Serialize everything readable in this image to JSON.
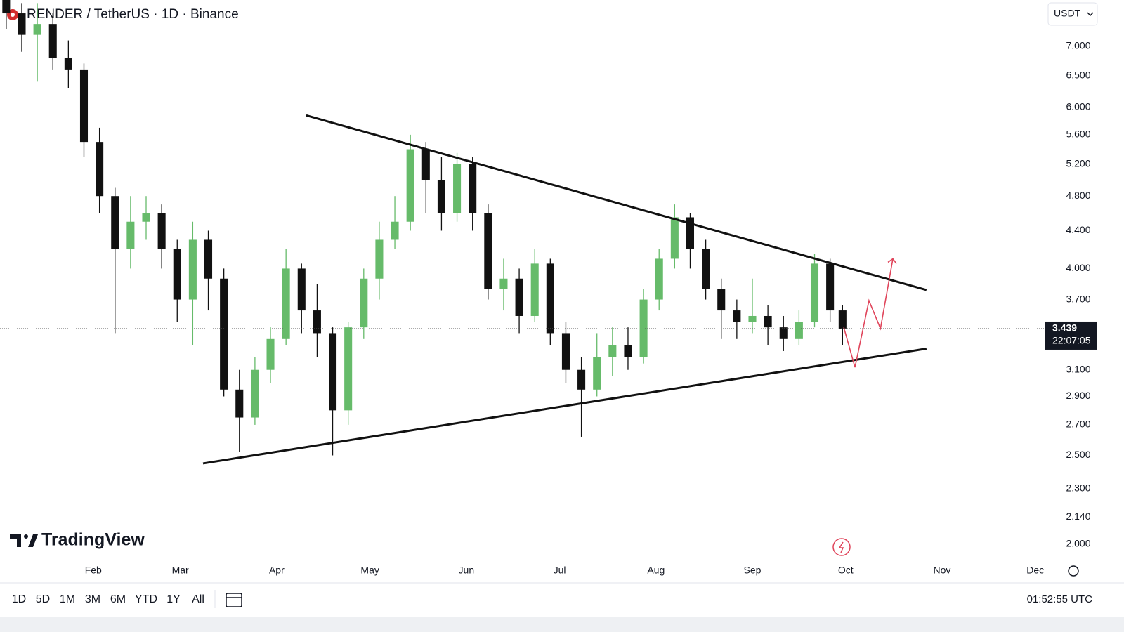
{
  "header": {
    "symbol": "RENDER / TetherUS · 1D · Binance",
    "currency": "USDT"
  },
  "brand": "TradingView",
  "toolbar": {
    "ranges": [
      "1D",
      "5D",
      "1M",
      "3M",
      "6M",
      "YTD",
      "1Y",
      "All"
    ],
    "clock": "01:52:55 UTC"
  },
  "chart_data": {
    "type": "candlestick",
    "log_scale": true,
    "up_color": "#66bb6a",
    "down_color": "#111111",
    "x": [
      3,
      8,
      13,
      18,
      23,
      28,
      33,
      38,
      43,
      48,
      53,
      58,
      63,
      68,
      73,
      78,
      83,
      88,
      93,
      98,
      103,
      108,
      113,
      118,
      123,
      128,
      133,
      138,
      143,
      148,
      153,
      158,
      163,
      168,
      173,
      178,
      183,
      188,
      193,
      198,
      203,
      208,
      213,
      218,
      223,
      228,
      233,
      238,
      243,
      248,
      253,
      258,
      263,
      268,
      272
    ],
    "open": [
      7.9,
      7.6,
      7.2,
      7.4,
      6.8,
      6.6,
      5.5,
      4.8,
      4.2,
      4.5,
      4.6,
      4.2,
      3.7,
      4.3,
      3.9,
      2.95,
      2.75,
      3.1,
      3.35,
      4.0,
      3.6,
      3.4,
      2.8,
      3.45,
      3.9,
      4.3,
      4.5,
      5.4,
      5.0,
      4.6,
      5.2,
      4.6,
      3.8,
      3.9,
      3.55,
      4.05,
      3.4,
      3.1,
      2.95,
      3.2,
      3.3,
      3.2,
      3.7,
      4.1,
      4.55,
      4.2,
      3.8,
      3.6,
      3.5,
      3.55,
      3.45,
      3.35,
      3.5,
      4.05,
      3.6
    ],
    "high": [
      8.1,
      7.8,
      7.8,
      7.6,
      7.1,
      6.7,
      5.7,
      4.9,
      4.8,
      4.8,
      4.7,
      4.3,
      4.5,
      4.4,
      4.0,
      3.1,
      3.2,
      3.45,
      4.2,
      4.05,
      3.85,
      3.45,
      3.5,
      4.0,
      4.5,
      4.8,
      5.6,
      5.5,
      5.3,
      5.35,
      5.3,
      4.7,
      4.1,
      4.0,
      4.2,
      4.1,
      3.5,
      3.2,
      3.4,
      3.45,
      3.45,
      3.8,
      4.2,
      4.7,
      4.6,
      4.3,
      3.9,
      3.7,
      3.9,
      3.65,
      3.55,
      3.6,
      4.15,
      4.1,
      3.65
    ],
    "low": [
      7.3,
      6.9,
      6.4,
      6.6,
      6.3,
      5.3,
      4.6,
      3.4,
      4.0,
      4.3,
      4.0,
      3.5,
      3.3,
      3.6,
      2.9,
      2.52,
      2.7,
      3.0,
      3.3,
      3.4,
      3.2,
      2.5,
      2.7,
      3.35,
      3.7,
      4.2,
      4.4,
      4.6,
      4.4,
      4.5,
      4.4,
      3.7,
      3.6,
      3.4,
      3.5,
      3.3,
      3.0,
      2.62,
      2.9,
      3.05,
      3.1,
      3.15,
      3.6,
      4.0,
      4.0,
      3.7,
      3.35,
      3.35,
      3.4,
      3.3,
      3.25,
      3.3,
      3.45,
      3.5,
      3.3
    ],
    "close": [
      7.6,
      7.2,
      7.4,
      6.8,
      6.6,
      5.5,
      4.8,
      4.2,
      4.5,
      4.6,
      4.2,
      3.7,
      4.3,
      3.9,
      2.95,
      2.75,
      3.1,
      3.35,
      4.0,
      3.6,
      3.4,
      2.8,
      3.45,
      3.9,
      4.3,
      4.5,
      5.4,
      5.0,
      4.6,
      5.2,
      4.6,
      3.8,
      3.9,
      3.55,
      4.05,
      3.4,
      3.1,
      2.95,
      3.2,
      3.3,
      3.2,
      3.7,
      4.1,
      4.55,
      4.2,
      3.8,
      3.6,
      3.5,
      3.55,
      3.45,
      3.35,
      3.5,
      4.05,
      3.6,
      3.439
    ],
    "last_price": 3.439,
    "last_price_countdown": "22:07:05",
    "trendlines": [
      {
        "color": "#111111",
        "x": [
          99.5,
          299
        ],
        "y": [
          5.88,
          3.79
        ]
      },
      {
        "color": "#111111",
        "x": [
          66.3,
          299
        ],
        "y": [
          2.45,
          3.27
        ]
      },
      {
        "color": "#e0455b",
        "x": [
          272.4,
          276,
          280.5,
          284.2,
          288.2
        ],
        "y": [
          3.45,
          3.12,
          3.69,
          3.44,
          4.1
        ]
      }
    ],
    "xlim": [
      1,
      337
    ],
    "ylim": [
      1.93,
      7.86
    ],
    "xticks": [
      {
        "value": 31,
        "label": "Feb"
      },
      {
        "value": 59,
        "label": "Mar"
      },
      {
        "value": 90,
        "label": "Apr"
      },
      {
        "value": 120,
        "label": "May"
      },
      {
        "value": 151,
        "label": "Jun"
      },
      {
        "value": 181,
        "label": "Jul"
      },
      {
        "value": 212,
        "label": "Aug"
      },
      {
        "value": 243,
        "label": "Sep"
      },
      {
        "value": 273,
        "label": "Oct"
      },
      {
        "value": 304,
        "label": "Nov"
      },
      {
        "value": 334,
        "label": "Dec"
      }
    ],
    "yticks": [
      {
        "value": 2,
        "label": "2.000"
      },
      {
        "value": 2.14,
        "label": "2.140"
      },
      {
        "value": 2.3,
        "label": "2.300"
      },
      {
        "value": 2.5,
        "label": "2.500"
      },
      {
        "value": 2.7,
        "label": "2.700"
      },
      {
        "value": 2.9,
        "label": "2.900"
      },
      {
        "value": 3.1,
        "label": "3.100"
      },
      {
        "value": 3.7,
        "label": "3.700"
      },
      {
        "value": 4,
        "label": "4.000"
      },
      {
        "value": 4.4,
        "label": "4.400"
      },
      {
        "value": 4.8,
        "label": "4.800"
      },
      {
        "value": 5.2,
        "label": "5.200"
      },
      {
        "value": 5.6,
        "label": "5.600"
      },
      {
        "value": 6,
        "label": "6.000"
      },
      {
        "value": 6.5,
        "label": "6.500"
      },
      {
        "value": 7,
        "label": "7.000"
      }
    ]
  }
}
